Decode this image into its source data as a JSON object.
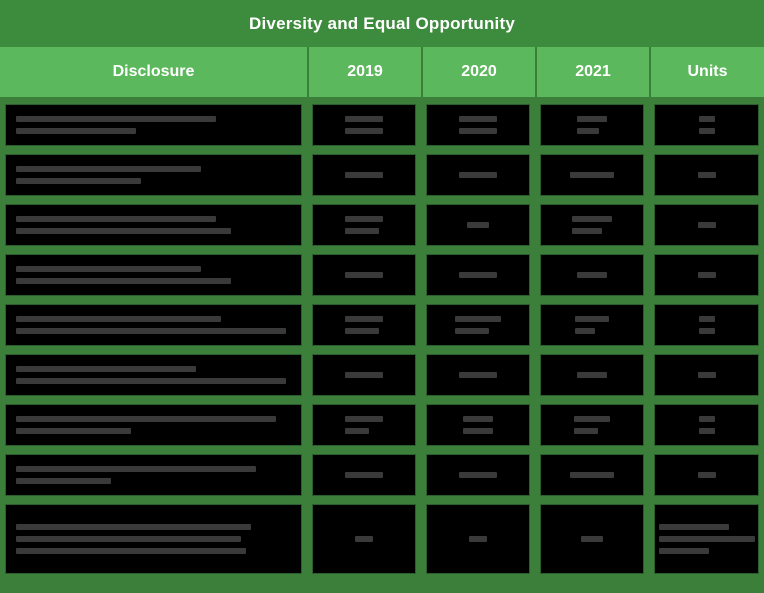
{
  "title": "Diversity and Equal Opportunity",
  "columns": {
    "disclosure": "Disclosure",
    "y2019": "2019",
    "y2020": "2020",
    "y2021": "2021",
    "units": "Units"
  },
  "colors": {
    "title_bg": "#3d8b3d",
    "header_bg": "#5cb85c",
    "row_bg": "#000000",
    "border": "#3b7f3b",
    "header_text": "#ffffff"
  },
  "note": "",
  "rows_count_visible": 9
}
